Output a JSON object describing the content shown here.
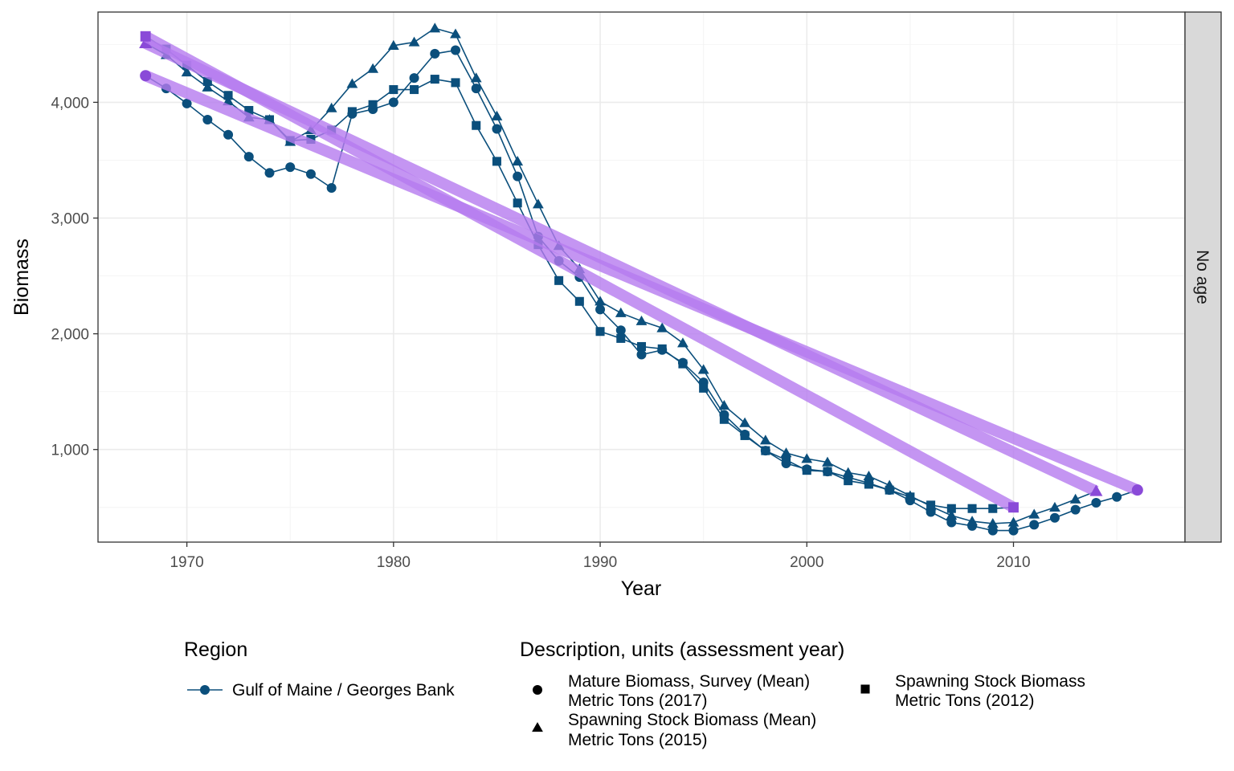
{
  "chart_data": {
    "type": "line",
    "xlabel": "Year",
    "ylabel": "Biomass",
    "xlim": [
      1965.7,
      2018.3
    ],
    "ylim": [
      200,
      4780
    ],
    "x_ticks": [
      1970,
      1980,
      1990,
      2000,
      2010
    ],
    "x_tick_labels": [
      "1970",
      "1980",
      "1990",
      "2000",
      "2010"
    ],
    "y_ticks": [
      1000,
      2000,
      3000,
      4000
    ],
    "y_tick_labels": [
      "1,000",
      "2,000",
      "3,000",
      "4,000"
    ],
    "facet_label": "No age",
    "grid": true,
    "series": [
      {
        "marker": "circle",
        "region": "Gulf of Maine / Georges Bank",
        "points": [
          [
            1968,
            4230
          ],
          [
            1969,
            4120
          ],
          [
            1970,
            3990
          ],
          [
            1971,
            3850
          ],
          [
            1972,
            3720
          ],
          [
            1973,
            3530
          ],
          [
            1974,
            3390
          ],
          [
            1975,
            3440
          ],
          [
            1976,
            3380
          ],
          [
            1977,
            3260
          ],
          [
            1978,
            3900
          ],
          [
            1979,
            3940
          ],
          [
            1980,
            4000
          ],
          [
            1981,
            4210
          ],
          [
            1982,
            4420
          ],
          [
            1983,
            4450
          ],
          [
            1984,
            4120
          ],
          [
            1985,
            3770
          ],
          [
            1986,
            3360
          ],
          [
            1987,
            2840
          ],
          [
            1988,
            2630
          ],
          [
            1989,
            2490
          ],
          [
            1990,
            2210
          ],
          [
            1991,
            2030
          ],
          [
            1992,
            1820
          ],
          [
            1993,
            1860
          ],
          [
            1994,
            1750
          ],
          [
            1995,
            1580
          ],
          [
            1996,
            1300
          ],
          [
            1997,
            1130
          ],
          [
            1998,
            990
          ],
          [
            1999,
            880
          ],
          [
            2000,
            830
          ],
          [
            2001,
            810
          ],
          [
            2002,
            760
          ],
          [
            2003,
            710
          ],
          [
            2004,
            650
          ],
          [
            2005,
            560
          ],
          [
            2006,
            460
          ],
          [
            2007,
            370
          ],
          [
            2008,
            340
          ],
          [
            2009,
            300
          ],
          [
            2010,
            300
          ],
          [
            2011,
            350
          ],
          [
            2012,
            410
          ],
          [
            2013,
            480
          ],
          [
            2014,
            540
          ],
          [
            2015,
            590
          ],
          [
            2016,
            650
          ]
        ]
      },
      {
        "marker": "triangle",
        "region": "Gulf of Maine / Georges Bank",
        "points": [
          [
            1968,
            4510
          ],
          [
            1969,
            4410
          ],
          [
            1970,
            4260
          ],
          [
            1971,
            4130
          ],
          [
            1972,
            4010
          ],
          [
            1973,
            3870
          ],
          [
            1974,
            3850
          ],
          [
            1975,
            3660
          ],
          [
            1976,
            3760
          ],
          [
            1977,
            3950
          ],
          [
            1978,
            4160
          ],
          [
            1979,
            4290
          ],
          [
            1980,
            4490
          ],
          [
            1981,
            4520
          ],
          [
            1982,
            4640
          ],
          [
            1983,
            4590
          ],
          [
            1984,
            4210
          ],
          [
            1985,
            3880
          ],
          [
            1986,
            3490
          ],
          [
            1987,
            3120
          ],
          [
            1988,
            2760
          ],
          [
            1989,
            2560
          ],
          [
            1990,
            2280
          ],
          [
            1991,
            2180
          ],
          [
            1992,
            2110
          ],
          [
            1993,
            2050
          ],
          [
            1994,
            1920
          ],
          [
            1995,
            1690
          ],
          [
            1996,
            1380
          ],
          [
            1997,
            1230
          ],
          [
            1998,
            1080
          ],
          [
            1999,
            970
          ],
          [
            2000,
            920
          ],
          [
            2001,
            890
          ],
          [
            2002,
            800
          ],
          [
            2003,
            770
          ],
          [
            2004,
            690
          ],
          [
            2005,
            600
          ],
          [
            2006,
            510
          ],
          [
            2007,
            430
          ],
          [
            2008,
            380
          ],
          [
            2009,
            360
          ],
          [
            2010,
            370
          ],
          [
            2011,
            440
          ],
          [
            2012,
            500
          ],
          [
            2013,
            570
          ],
          [
            2014,
            640
          ]
        ]
      },
      {
        "marker": "square",
        "region": "Gulf of Maine / Georges Bank",
        "points": [
          [
            1968,
            4570
          ],
          [
            1969,
            4460
          ],
          [
            1970,
            4320
          ],
          [
            1971,
            4180
          ],
          [
            1972,
            4060
          ],
          [
            1973,
            3930
          ],
          [
            1974,
            3850
          ],
          [
            1975,
            3670
          ],
          [
            1976,
            3680
          ],
          [
            1977,
            3760
          ],
          [
            1978,
            3920
          ],
          [
            1979,
            3980
          ],
          [
            1980,
            4110
          ],
          [
            1981,
            4110
          ],
          [
            1982,
            4200
          ],
          [
            1983,
            4170
          ],
          [
            1984,
            3800
          ],
          [
            1985,
            3490
          ],
          [
            1986,
            3130
          ],
          [
            1987,
            2770
          ],
          [
            1988,
            2460
          ],
          [
            1989,
            2280
          ],
          [
            1990,
            2020
          ],
          [
            1991,
            1960
          ],
          [
            1992,
            1890
          ],
          [
            1993,
            1870
          ],
          [
            1994,
            1740
          ],
          [
            1995,
            1530
          ],
          [
            1996,
            1260
          ],
          [
            1997,
            1120
          ],
          [
            1998,
            990
          ],
          [
            1999,
            910
          ],
          [
            2000,
            820
          ],
          [
            2001,
            810
          ],
          [
            2002,
            730
          ],
          [
            2003,
            700
          ],
          [
            2004,
            650
          ],
          [
            2005,
            590
          ],
          [
            2006,
            520
          ],
          [
            2007,
            490
          ],
          [
            2008,
            490
          ],
          [
            2009,
            490
          ],
          [
            2010,
            500
          ]
        ]
      }
    ],
    "trend_lines": [
      {
        "from": [
          1968,
          4230
        ],
        "to": [
          2016,
          650
        ]
      },
      {
        "from": [
          1968,
          4510
        ],
        "to": [
          2014,
          640
        ]
      },
      {
        "from": [
          1968,
          4570
        ],
        "to": [
          2010,
          500
        ]
      }
    ],
    "colors": {
      "series": "#0b4f7c",
      "trend": "#b57aef",
      "trend_marker": "#8a4ad8",
      "strip_fill": "#d9d9d9",
      "grid_major": "#ebebeb",
      "grid_minor": "#f4f4f4",
      "panel_border": "#333333"
    }
  },
  "legend": {
    "region": {
      "title": "Region",
      "item": "Gulf of Maine / Georges Bank",
      "icon": "line-with-circle"
    },
    "description": {
      "title": "Description, units (assessment year)",
      "items": [
        {
          "icon": "circle",
          "line1": "Mature Biomass, Survey (Mean)",
          "line2": "Metric Tons (2017)"
        },
        {
          "icon": "triangle",
          "line1": "Spawning Stock Biomass (Mean)",
          "line2": "Metric Tons (2015)"
        },
        {
          "icon": "square",
          "line1": "Spawning Stock Biomass",
          "line2": "Metric Tons (2012)"
        }
      ]
    }
  }
}
